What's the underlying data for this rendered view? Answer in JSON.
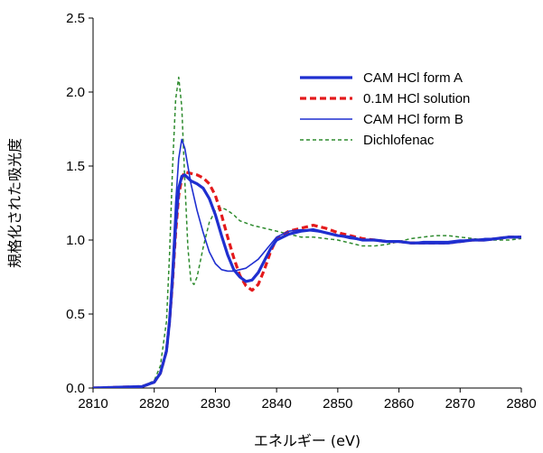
{
  "chart_data": {
    "type": "line",
    "title": "",
    "xlabel": "エネルギー (eV)",
    "ylabel": "規格化された吸光度",
    "xlim": [
      2810,
      2880
    ],
    "ylim": [
      0,
      2.5
    ],
    "x_ticks": [
      "2810",
      "2820",
      "2830",
      "2840",
      "2850",
      "2860",
      "2870",
      "2880"
    ],
    "y_ticks": [
      "0.0",
      "0.5",
      "1.0",
      "1.5",
      "2.0",
      "2.5"
    ],
    "grid": false,
    "legend_position": "top-right",
    "series": [
      {
        "name": "CAM HCl form A",
        "color": "#1f2fd0",
        "style": "solid-thick",
        "x": [
          2810,
          2818,
          2820,
          2821,
          2822,
          2822.5,
          2823,
          2823.5,
          2824,
          2824.5,
          2825,
          2825.5,
          2826,
          2827,
          2828,
          2829,
          2830,
          2831,
          2832,
          2833,
          2834,
          2835,
          2836,
          2837,
          2838,
          2839,
          2840,
          2842,
          2844,
          2846,
          2848,
          2850,
          2852,
          2854,
          2856,
          2858,
          2860,
          2862,
          2864,
          2866,
          2868,
          2870,
          2872,
          2874,
          2876,
          2878,
          2880
        ],
        "y": [
          0.0,
          0.01,
          0.04,
          0.1,
          0.25,
          0.45,
          0.75,
          1.1,
          1.35,
          1.43,
          1.44,
          1.42,
          1.4,
          1.38,
          1.35,
          1.28,
          1.17,
          1.03,
          0.9,
          0.8,
          0.75,
          0.72,
          0.73,
          0.78,
          0.86,
          0.94,
          1.0,
          1.04,
          1.06,
          1.07,
          1.05,
          1.03,
          1.02,
          1.0,
          1.0,
          0.99,
          0.99,
          0.98,
          0.98,
          0.98,
          0.98,
          0.99,
          1.0,
          1.0,
          1.01,
          1.02,
          1.02
        ]
      },
      {
        "name": "0.1M HCl solution",
        "color": "#e41a1c",
        "style": "dashed-thick",
        "x": [
          2810,
          2818,
          2820,
          2821,
          2822,
          2822.5,
          2823,
          2823.5,
          2824,
          2824.5,
          2825,
          2826,
          2827,
          2828,
          2829,
          2830,
          2831,
          2832,
          2833,
          2834,
          2835,
          2836,
          2837,
          2838,
          2839,
          2840,
          2842,
          2844,
          2846,
          2848,
          2850,
          2852,
          2854,
          2856,
          2858,
          2860,
          2862,
          2864,
          2866,
          2868,
          2870,
          2872,
          2874,
          2876,
          2878,
          2880
        ],
        "y": [
          0.0,
          0.01,
          0.04,
          0.1,
          0.25,
          0.45,
          0.72,
          1.05,
          1.3,
          1.42,
          1.46,
          1.45,
          1.44,
          1.42,
          1.38,
          1.3,
          1.17,
          1.02,
          0.88,
          0.76,
          0.69,
          0.66,
          0.7,
          0.8,
          0.92,
          1.01,
          1.06,
          1.08,
          1.1,
          1.08,
          1.05,
          1.03,
          1.01,
          1.0,
          0.99,
          0.99,
          0.98,
          0.98,
          0.98,
          0.98,
          0.99,
          1.0,
          1.0,
          1.01,
          1.02,
          1.02
        ]
      },
      {
        "name": "CAM HCl form B",
        "color": "#1f2fd0",
        "style": "solid-thin",
        "x": [
          2810,
          2818,
          2820,
          2821,
          2822,
          2822.5,
          2823,
          2823.5,
          2824,
          2824.5,
          2825,
          2825.5,
          2826,
          2827,
          2828,
          2829,
          2830,
          2831,
          2832,
          2833,
          2834,
          2835,
          2836,
          2837,
          2838,
          2839,
          2840,
          2842,
          2844,
          2846,
          2848,
          2850,
          2852,
          2854,
          2856,
          2858,
          2860,
          2862,
          2864,
          2866,
          2868,
          2870,
          2872,
          2874,
          2876,
          2878,
          2880
        ],
        "y": [
          0.0,
          0.01,
          0.04,
          0.1,
          0.27,
          0.5,
          0.85,
          1.25,
          1.55,
          1.68,
          1.62,
          1.5,
          1.38,
          1.2,
          1.05,
          0.92,
          0.84,
          0.8,
          0.79,
          0.79,
          0.8,
          0.81,
          0.84,
          0.87,
          0.92,
          0.97,
          1.02,
          1.06,
          1.07,
          1.06,
          1.05,
          1.03,
          1.01,
          1.0,
          1.0,
          0.99,
          0.99,
          0.98,
          0.99,
          0.99,
          0.99,
          1.0,
          1.0,
          1.01,
          1.01,
          1.02,
          1.02
        ]
      },
      {
        "name": "Dichlofenac",
        "color": "#2e8b2e",
        "style": "dashed-thin",
        "x": [
          2810,
          2818,
          2820,
          2821,
          2822,
          2822.5,
          2823,
          2823.5,
          2824,
          2824.5,
          2825,
          2825.5,
          2826,
          2826.5,
          2827,
          2828,
          2829,
          2830,
          2831,
          2832,
          2833,
          2834,
          2836,
          2838,
          2840,
          2842,
          2844,
          2846,
          2848,
          2850,
          2852,
          2854,
          2856,
          2858,
          2860,
          2862,
          2864,
          2866,
          2868,
          2870,
          2872,
          2874,
          2876,
          2878,
          2880
        ],
        "y": [
          0.0,
          0.01,
          0.05,
          0.15,
          0.45,
          0.9,
          1.5,
          1.95,
          2.1,
          1.9,
          1.4,
          0.95,
          0.72,
          0.7,
          0.75,
          0.95,
          1.12,
          1.2,
          1.22,
          1.2,
          1.17,
          1.13,
          1.1,
          1.08,
          1.06,
          1.04,
          1.02,
          1.02,
          1.01,
          1.0,
          0.98,
          0.96,
          0.96,
          0.97,
          0.99,
          1.01,
          1.02,
          1.03,
          1.03,
          1.02,
          1.01,
          1.0,
          1.0,
          1.0,
          1.01
        ]
      }
    ]
  }
}
